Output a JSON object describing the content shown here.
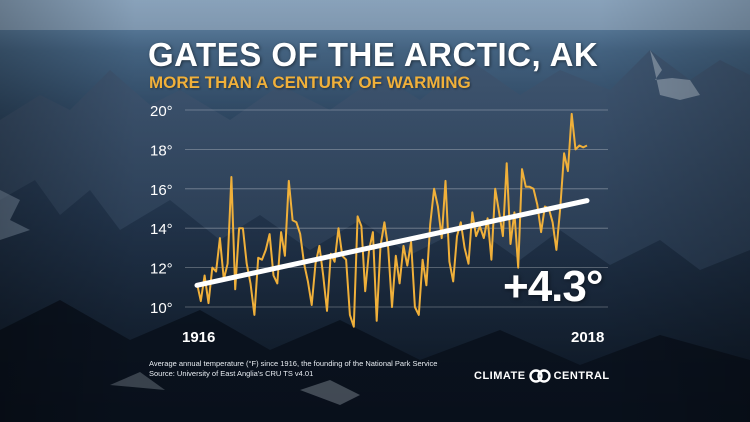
{
  "title": "GATES OF THE ARCTIC, AK",
  "subtitle": "MORE THAN A CENTURY OF WARMING",
  "year_start_label": "1916",
  "year_end_label": "2018",
  "trend_label": "+4.3°",
  "note_line1": "Average annual temperature (°F) since 1916, the founding of the National Park Service",
  "note_line2": "Source: University of East Anglia's CRU TS v4.01",
  "logo": {
    "left": "CLIMATE",
    "right": "CENTRAL",
    "icon": "climate-central-logo-icon"
  },
  "colors": {
    "series": "#f0b03a",
    "trend": "#ffffff",
    "accent": "#f0b03a"
  },
  "chart_data": {
    "type": "line",
    "title": "GATES OF THE ARCTIC, AK",
    "subtitle": "MORE THAN A CENTURY OF WARMING",
    "xlabel": "",
    "ylabel": "",
    "ylim": [
      9,
      20.5
    ],
    "xlim": [
      1916,
      2018
    ],
    "yticks": [
      10,
      12,
      14,
      16,
      18,
      20
    ],
    "ytick_labels": [
      "10°",
      "12°",
      "14°",
      "16°",
      "18°",
      "20°"
    ],
    "grid": true,
    "series": [
      {
        "x": [
          1916,
          1917,
          1918,
          1919,
          1920,
          1921,
          1922,
          1923,
          1924,
          1925,
          1926,
          1927,
          1928,
          1929,
          1930,
          1931,
          1932,
          1933,
          1934,
          1935,
          1936,
          1937,
          1938,
          1939,
          1940,
          1941,
          1942,
          1943,
          1944,
          1945,
          1946,
          1947,
          1948,
          1949,
          1950,
          1951,
          1952,
          1953,
          1954,
          1955,
          1956,
          1957,
          1958,
          1959,
          1960,
          1961,
          1962,
          1963,
          1964,
          1965,
          1966,
          1967,
          1968,
          1969,
          1970,
          1971,
          1972,
          1973,
          1974,
          1975,
          1976,
          1977,
          1978,
          1979,
          1980,
          1981,
          1982,
          1983,
          1984,
          1985,
          1986,
          1987,
          1988,
          1989,
          1990,
          1991,
          1992,
          1993,
          1994,
          1995,
          1996,
          1997,
          1998,
          1999,
          2000,
          2001,
          2002,
          2003,
          2004,
          2005,
          2006,
          2007,
          2008,
          2009,
          2010,
          2011,
          2012,
          2013,
          2014,
          2015,
          2016,
          2017,
          2018
        ],
        "values": [
          11.2,
          10.3,
          11.6,
          10.2,
          12.0,
          11.8,
          13.5,
          11.4,
          12.2,
          16.6,
          10.9,
          14.0,
          14.0,
          12.2,
          11.2,
          9.6,
          12.5,
          12.4,
          12.9,
          13.7,
          11.6,
          11.2,
          13.8,
          12.6,
          16.4,
          14.4,
          14.3,
          13.7,
          12.2,
          11.3,
          10.1,
          12.2,
          13.1,
          11.6,
          9.8,
          12.7,
          12.3,
          14.0,
          12.6,
          12.4,
          9.6,
          9.0,
          14.6,
          14.1,
          10.8,
          12.9,
          13.8,
          9.3,
          13.1,
          14.3,
          13.0,
          10.0,
          12.6,
          11.2,
          13.1,
          12.1,
          13.3,
          10.0,
          9.6,
          12.4,
          11.1,
          14.2,
          16.0,
          15.1,
          13.5,
          16.4,
          12.3,
          11.3,
          13.6,
          14.3,
          13.0,
          12.2,
          14.8,
          13.6,
          14.1,
          13.5,
          14.5,
          12.4,
          16.0,
          14.8,
          13.6,
          17.3,
          13.2,
          14.8,
          12.0,
          17.0,
          16.1,
          16.1,
          16.0,
          15.2,
          13.8,
          15.1,
          15.0,
          14.3,
          12.9,
          15.0,
          17.8,
          16.9,
          19.8,
          18.0,
          18.2,
          18.1,
          18.2
        ]
      }
    ],
    "trend": {
      "x": [
        1916,
        2018
      ],
      "values": [
        11.1,
        15.4
      ],
      "change_label": "+4.3°"
    }
  }
}
